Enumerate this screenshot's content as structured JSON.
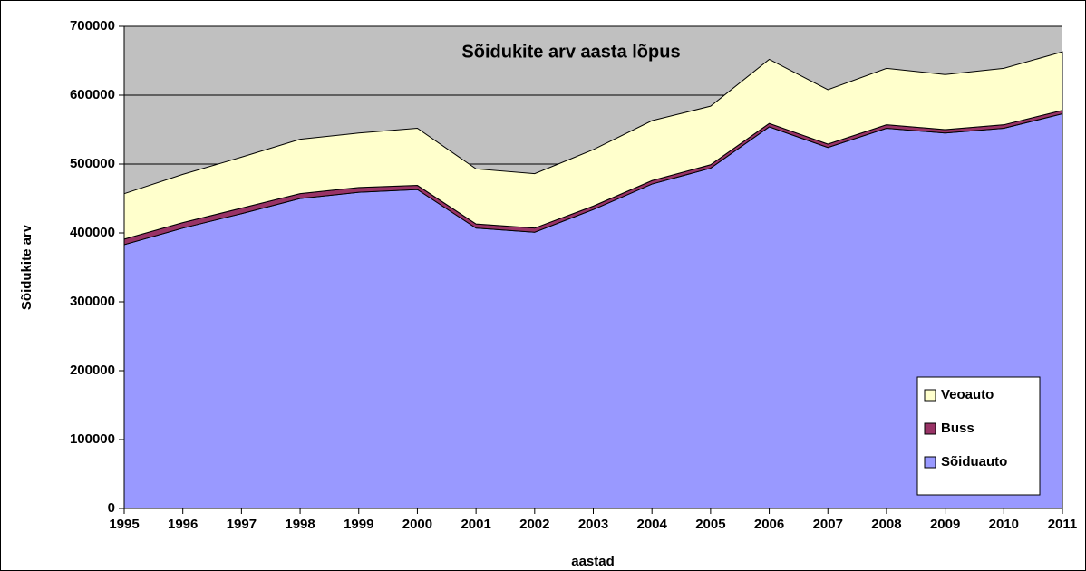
{
  "chart_data": {
    "type": "stacked_area",
    "title": "Sõidukite arv aasta lõpus",
    "x_label": "aastad",
    "y_label": "Sõidukite arv",
    "categories": [
      "1995",
      "1996",
      "1997",
      "1998",
      "1999",
      "2000",
      "2001",
      "2002",
      "2003",
      "2004",
      "2005",
      "2006",
      "2007",
      "2008",
      "2009",
      "2010",
      "2011"
    ],
    "series": [
      {
        "name": "Sõiduauto",
        "color": "#9999ff",
        "values": [
          383000,
          407000,
          428000,
          450000,
          459000,
          463000,
          407000,
          401000,
          434000,
          471000,
          494000,
          554000,
          524000,
          552000,
          545000,
          552000,
          573000
        ]
      },
      {
        "name": "Buss",
        "color": "#993366",
        "values": [
          8000,
          8000,
          8000,
          7000,
          7000,
          6000,
          6000,
          6000,
          5000,
          5000,
          5000,
          5000,
          5000,
          5000,
          5000,
          5000,
          5000
        ]
      },
      {
        "name": "Veoauto",
        "color": "#ffffcc",
        "values": [
          66000,
          70000,
          74000,
          79000,
          79000,
          83000,
          80000,
          79000,
          82000,
          87000,
          85000,
          93000,
          79000,
          82000,
          80000,
          82000,
          85000
        ]
      }
    ],
    "ylim": [
      0,
      700000
    ],
    "yticks": [
      0,
      100000,
      200000,
      300000,
      400000,
      500000,
      600000,
      700000
    ],
    "grid": true,
    "legend": "bottom-right",
    "plot_background": "#c0c0c0"
  }
}
